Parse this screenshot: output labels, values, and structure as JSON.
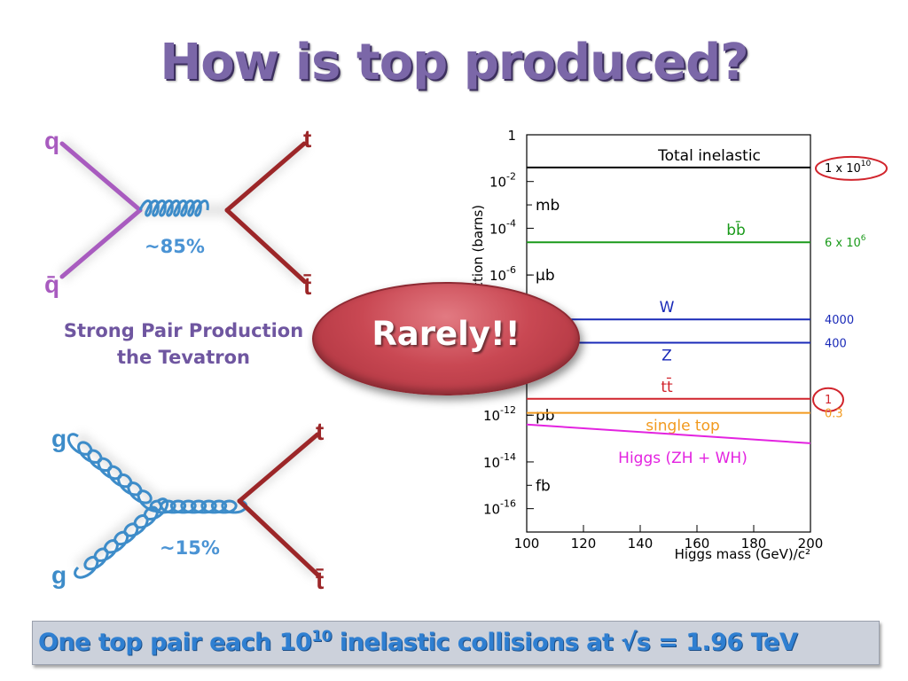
{
  "title": "How is top produced?",
  "diagram_qq": {
    "in_top": "q",
    "in_bottom": "q̄",
    "out_top": "t",
    "out_bottom": "t̄",
    "percent": "~85%"
  },
  "caption": {
    "line1": "Strong Pair Production",
    "line2": "the Tevatron"
  },
  "diagram_gg": {
    "in_top": "g",
    "in_bottom": "g",
    "out_top": "t",
    "out_bottom": "t̄",
    "percent": "~15%"
  },
  "rarely": "Rarely!!",
  "bottom": {
    "part1": "One top pair each 10",
    "exp": "10",
    "part2": " inelastic collisions at √s = 1.96 TeV"
  },
  "colors": {
    "quark": "#a85bbf",
    "top": "#9c2628",
    "gluon": "#3d8cc9",
    "total_inelastic": "#000000",
    "bb": "#1a9a1a",
    "w": "#1a2ab8",
    "z": "#1a2ab8",
    "tt": "#d1242c",
    "single_top": "#f29a1f",
    "higgs": "#e323e0"
  },
  "chart_data": {
    "type": "line",
    "ylabel": "Cross section (barns)",
    "xlabel": "Higgs mass (GeV)/c²",
    "x_ticks": [
      "100",
      "120",
      "140",
      "160",
      "180",
      "200"
    ],
    "xlim": [
      100,
      200
    ],
    "ylim_log10": [
      -17,
      0
    ],
    "y_ticks": [
      {
        "log": 0,
        "base": "1",
        "exp": ""
      },
      {
        "log": -2,
        "base": "10",
        "exp": "-2"
      },
      {
        "log": -4,
        "base": "10",
        "exp": "-4"
      },
      {
        "log": -6,
        "base": "10",
        "exp": "-6"
      },
      {
        "log": -12,
        "base": "10",
        "exp": "-12"
      },
      {
        "log": -14,
        "base": "10",
        "exp": "-14"
      },
      {
        "log": -16,
        "base": "10",
        "exp": "-16"
      }
    ],
    "unit_marks": [
      {
        "log": -3,
        "label": "mb"
      },
      {
        "log": -6,
        "label": "μb"
      },
      {
        "log": -12,
        "label": "pb"
      },
      {
        "log": -15,
        "label": "fb"
      }
    ],
    "series": [
      {
        "name": "Total inelastic",
        "log_y": [
          -1.4,
          -1.4
        ],
        "x": [
          100,
          200
        ],
        "right_label": "1 x 10",
        "right_exp": "10",
        "circled": true,
        "color_key": "total_inelastic"
      },
      {
        "name": "bb̄",
        "log_y": [
          -4.6,
          -4.6
        ],
        "x": [
          100,
          200
        ],
        "right_label": "6 x 10",
        "right_exp": "6",
        "circled": false,
        "color_key": "bb"
      },
      {
        "name": "W",
        "log_y": [
          -7.9,
          -7.9
        ],
        "x": [
          100,
          200
        ],
        "right_label": "4000",
        "right_exp": "",
        "circled": false,
        "color_key": "w"
      },
      {
        "name": "Z",
        "log_y": [
          -8.9,
          -8.9
        ],
        "x": [
          100,
          200
        ],
        "right_label": "400",
        "right_exp": "",
        "circled": false,
        "color_key": "z"
      },
      {
        "name": "tt̄",
        "log_y": [
          -11.3,
          -11.3
        ],
        "x": [
          100,
          200
        ],
        "right_label": "1",
        "right_exp": "",
        "circled": true,
        "color_key": "tt"
      },
      {
        "name": "single top",
        "log_y": [
          -11.9,
          -11.9
        ],
        "x": [
          100,
          200
        ],
        "right_label": "0.3",
        "right_exp": "",
        "circled": false,
        "color_key": "single_top"
      },
      {
        "name": "Higgs (ZH + WH)",
        "log_y": [
          -12.4,
          -13.2
        ],
        "x": [
          100,
          200
        ],
        "right_label": "",
        "right_exp": "",
        "circled": false,
        "color_key": "higgs"
      }
    ]
  }
}
